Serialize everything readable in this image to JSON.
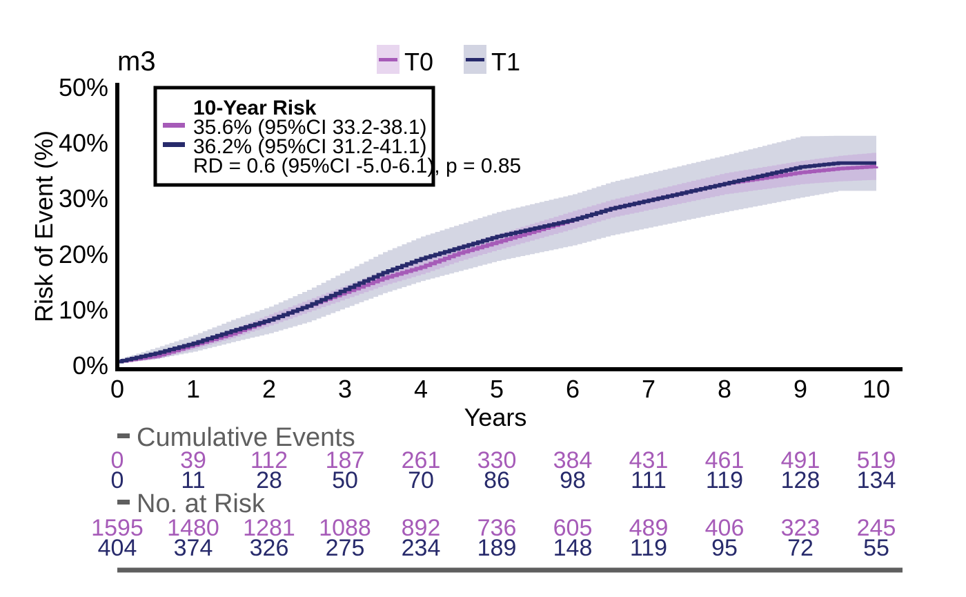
{
  "chart_data": {
    "type": "line",
    "subtype": "cumulative-incidence-step",
    "title": "m3",
    "xlabel": "Years",
    "ylabel": "Risk of Event (%)",
    "xlim": [
      0,
      10
    ],
    "ylim": [
      0,
      50
    ],
    "x_ticks": [
      "0",
      "1",
      "2",
      "3",
      "4",
      "5",
      "6",
      "7",
      "8",
      "9",
      "10"
    ],
    "y_ticks": [
      "0%",
      "10%",
      "20%",
      "30%",
      "40%",
      "50%"
    ],
    "legend_position": "top-center",
    "legend": [
      {
        "name": "T0",
        "color": "#a65bb8",
        "fill": "#e8d6ef"
      },
      {
        "name": "T1",
        "color": "#272a6b",
        "fill": "#d2d4e2"
      }
    ],
    "x": [
      0,
      0.5,
      1,
      1.5,
      2,
      2.5,
      3,
      3.5,
      4,
      4.5,
      5,
      5.5,
      6,
      6.5,
      7,
      7.5,
      8,
      8.5,
      9,
      9.5,
      10
    ],
    "series": [
      {
        "name": "T0",
        "color": "#a65bb8",
        "band_color": "#c9b3dc",
        "values": [
          0.5,
          1.5,
          3.5,
          5.5,
          8.0,
          10.5,
          13.0,
          15.5,
          17.5,
          20.0,
          22.0,
          24.0,
          26.0,
          28.0,
          29.5,
          31.0,
          32.5,
          33.5,
          34.5,
          35.2,
          35.6
        ],
        "lower": [
          0.3,
          1.0,
          2.8,
          4.7,
          7.0,
          9.4,
          11.8,
          14.2,
          16.2,
          18.6,
          20.6,
          22.5,
          24.4,
          26.4,
          27.8,
          29.2,
          30.6,
          31.5,
          32.4,
          32.9,
          33.2
        ],
        "upper": [
          0.7,
          2.0,
          4.2,
          6.3,
          9.0,
          11.6,
          14.2,
          16.8,
          18.8,
          21.4,
          23.4,
          25.5,
          27.6,
          29.6,
          31.2,
          32.8,
          34.4,
          35.5,
          36.6,
          37.5,
          38.1
        ]
      },
      {
        "name": "T1",
        "color": "#272a6b",
        "band_color": "#d2d4e2",
        "values": [
          0.5,
          2.0,
          3.8,
          6.0,
          8.0,
          10.5,
          13.5,
          16.5,
          19.0,
          21.0,
          23.0,
          24.5,
          26.0,
          28.0,
          29.5,
          31.0,
          32.5,
          34.0,
          35.5,
          36.2,
          36.2
        ],
        "lower": [
          0.2,
          1.0,
          2.3,
          4.0,
          5.6,
          7.6,
          10.2,
          12.8,
          15.0,
          16.8,
          18.6,
          20.0,
          21.4,
          23.2,
          24.6,
          26.0,
          27.4,
          28.7,
          30.0,
          31.2,
          31.2
        ],
        "upper": [
          0.9,
          3.0,
          5.3,
          8.0,
          10.4,
          13.4,
          16.8,
          20.2,
          23.0,
          25.2,
          27.4,
          29.0,
          30.6,
          32.8,
          34.4,
          36.0,
          37.6,
          39.3,
          41.0,
          41.1,
          41.1
        ]
      }
    ],
    "annotation": {
      "title": "10-Year Risk",
      "lines": [
        "35.6% (95%CI 33.2-38.1)",
        "36.2% (95%CI 31.2-41.1)",
        "RD = 0.6 (95%CI -5.0-6.1), p = 0.85"
      ]
    },
    "risk_table": {
      "cumulative_events": {
        "label": "Cumulative Events",
        "T0": [
          "0",
          "39",
          "112",
          "187",
          "261",
          "330",
          "384",
          "431",
          "461",
          "491",
          "519"
        ],
        "T1": [
          "0",
          "11",
          "28",
          "50",
          "70",
          "86",
          "98",
          "111",
          "119",
          "128",
          "134"
        ]
      },
      "at_risk": {
        "label": "No. at Risk",
        "T0": [
          "1595",
          "1480",
          "1281",
          "1088",
          "892",
          "736",
          "605",
          "489",
          "406",
          "323",
          "245"
        ],
        "T1": [
          "404",
          "374",
          "326",
          "275",
          "234",
          "189",
          "148",
          "119",
          "95",
          "72",
          "55"
        ]
      }
    }
  }
}
